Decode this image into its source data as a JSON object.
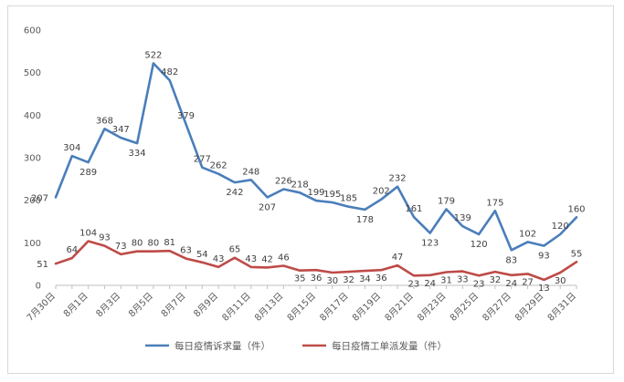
{
  "chart_data": {
    "type": "line",
    "categories": [
      "7月30日",
      "7月31日",
      "8月1日",
      "8月2日",
      "8月3日",
      "8月4日",
      "8月5日",
      "8月6日",
      "8月7日",
      "8月8日",
      "8月9日",
      "8月10日",
      "8月11日",
      "8月12日",
      "8月13日",
      "8月14日",
      "8月15日",
      "8月16日",
      "8月17日",
      "8月18日",
      "8月19日",
      "8月20日",
      "8月21日",
      "8月22日",
      "8月23日",
      "8月24日",
      "8月25日",
      "8月26日",
      "8月27日",
      "8月28日",
      "8月29日",
      "8月30日",
      "8月31日"
    ],
    "tick_labels": [
      "7月30日",
      "8月1日",
      "8月3日",
      "8月5日",
      "8月7日",
      "8月9日",
      "8月11日",
      "8月13日",
      "8月15日",
      "8月17日",
      "8月19日",
      "8月21日",
      "8月23日",
      "8月25日",
      "8月27日",
      "8月29日",
      "8月31日"
    ],
    "series": [
      {
        "name": "每日疫情诉求量（件）",
        "color": "#4a7ebb",
        "values": [
          207,
          304,
          289,
          368,
          347,
          334,
          522,
          482,
          379,
          277,
          262,
          242,
          248,
          207,
          226,
          218,
          199,
          195,
          185,
          178,
          202,
          232,
          161,
          123,
          179,
          139,
          120,
          175,
          83,
          102,
          93,
          120,
          160
        ]
      },
      {
        "name": "每日疫情工单派发量（件）",
        "color": "#be4b48",
        "values": [
          51,
          64,
          104,
          93,
          73,
          80,
          80,
          81,
          63,
          54,
          43,
          65,
          43,
          42,
          46,
          35,
          36,
          30,
          32,
          34,
          36,
          47,
          23,
          24,
          31,
          33,
          23,
          32,
          24,
          27,
          13,
          30,
          55
        ]
      }
    ],
    "yticks": [
      0,
      100,
      200,
      300,
      400,
      500,
      600
    ],
    "ylim": [
      0,
      600
    ],
    "grid": false,
    "legend_position": "bottom"
  }
}
